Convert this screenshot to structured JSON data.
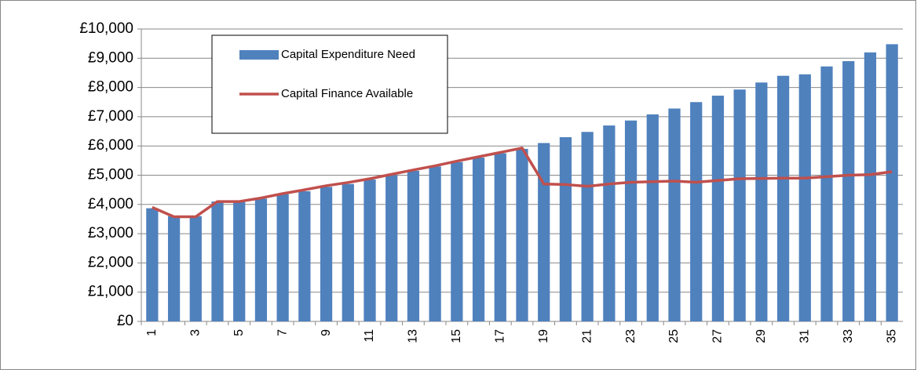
{
  "chart_data": {
    "type": "bar-line",
    "categories": [
      "1",
      null,
      "3",
      null,
      "5",
      null,
      "7",
      null,
      "9",
      null,
      "11",
      null,
      "13",
      null,
      "15",
      null,
      "17",
      null,
      "19",
      null,
      "21",
      null,
      "23",
      null,
      "25",
      null,
      "27",
      null,
      "29",
      null,
      "31",
      null,
      "33",
      null,
      "35"
    ],
    "series": [
      {
        "name": "Capital Expenditure Need",
        "type": "bar",
        "color": "#4f81bd",
        "values": [
          3870,
          3600,
          3600,
          4100,
          4100,
          4200,
          4350,
          4450,
          4600,
          4700,
          4850,
          5000,
          5150,
          5300,
          5450,
          5600,
          5750,
          5900,
          6100,
          6300,
          6480,
          6700,
          6870,
          7080,
          7280,
          7500,
          7720,
          7930,
          8170,
          8400,
          8450,
          8720,
          8900,
          9200,
          9480
        ]
      },
      {
        "name": "Capital Finance Available",
        "type": "line",
        "color": "#c0504d",
        "values": [
          3900,
          3580,
          3580,
          4100,
          4100,
          4220,
          4370,
          4500,
          4640,
          4750,
          4880,
          5030,
          5180,
          5320,
          5480,
          5630,
          5780,
          5930,
          4700,
          4680,
          4620,
          4700,
          4760,
          4780,
          4800,
          4760,
          4820,
          4880,
          4890,
          4900,
          4900,
          4950,
          5000,
          5020,
          5120
        ]
      }
    ],
    "ylim": [
      0,
      10000
    ],
    "yticks": [
      {
        "value": 0,
        "label": "£0"
      },
      {
        "value": 1000,
        "label": "£1,000"
      },
      {
        "value": 2000,
        "label": "£2,000"
      },
      {
        "value": 3000,
        "label": "£3,000"
      },
      {
        "value": 4000,
        "label": "£4,000"
      },
      {
        "value": 5000,
        "label": "£5,000"
      },
      {
        "value": 6000,
        "label": "£6,000"
      },
      {
        "value": 7000,
        "label": "£7,000"
      },
      {
        "value": 8000,
        "label": "£8,000"
      },
      {
        "value": 9000,
        "label": "£9,000"
      },
      {
        "value": 10000,
        "label": "£10,000"
      }
    ],
    "grid": true
  }
}
